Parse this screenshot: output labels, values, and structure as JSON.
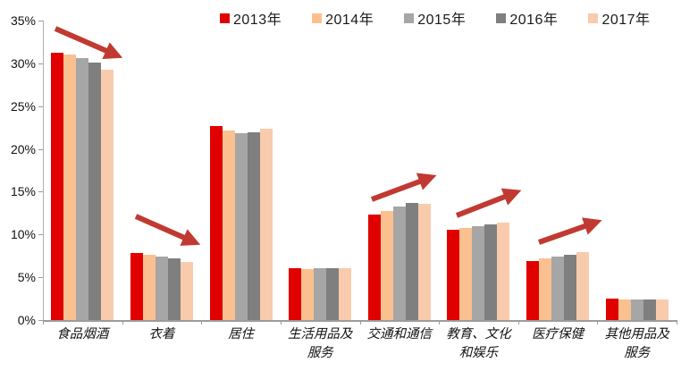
{
  "chart_data": {
    "type": "bar",
    "title": "",
    "categories": [
      "食品烟酒",
      "衣着",
      "居住",
      "生活用品及\n服务",
      "交通和通信",
      "教育、文化\n和娱乐",
      "医疗保健",
      "其他用品及\n服务"
    ],
    "series": [
      {
        "name": "2013年",
        "color": "#e00000",
        "values": [
          31.2,
          7.8,
          22.7,
          6.1,
          12.3,
          10.6,
          6.9,
          2.5
        ]
      },
      {
        "name": "2014年",
        "color": "#fac090",
        "values": [
          31.0,
          7.6,
          22.1,
          6.0,
          12.8,
          10.8,
          7.2,
          2.4
        ]
      },
      {
        "name": "2015年",
        "color": "#a6a6a6",
        "values": [
          30.6,
          7.4,
          21.8,
          6.1,
          13.3,
          11.0,
          7.4,
          2.4
        ]
      },
      {
        "name": "2016年",
        "color": "#7f7f7f",
        "values": [
          30.1,
          7.2,
          21.9,
          6.1,
          13.7,
          11.2,
          7.6,
          2.4
        ]
      },
      {
        "name": "2017年",
        "color": "#f8cbad",
        "values": [
          29.3,
          6.8,
          22.4,
          6.1,
          13.6,
          11.4,
          7.9,
          2.4
        ]
      }
    ],
    "ylim": [
      0,
      35
    ],
    "ytick_step": 5,
    "ytick_labels": [
      "0%",
      "5%",
      "10%",
      "15%",
      "20%",
      "25%",
      "30%",
      "35%"
    ],
    "xlabel": "",
    "ylabel": "",
    "grid": false,
    "legend_position": "top",
    "axis_color": "#9c9c9c",
    "arrow_color": "#c13a32",
    "annotations": [
      {
        "type": "arrow",
        "target": "食品烟酒",
        "trend": "down",
        "from": [
          62,
          32
        ],
        "to": [
          124,
          59
        ]
      },
      {
        "type": "arrow",
        "target": "衣着",
        "trend": "down",
        "from": [
          152,
          242
        ],
        "to": [
          211,
          268
        ]
      },
      {
        "type": "arrow",
        "target": "交通和通信",
        "trend": "up",
        "from": [
          416,
          223
        ],
        "to": [
          475,
          201
        ]
      },
      {
        "type": "arrow",
        "target": "教育、文化和娱乐",
        "trend": "up",
        "from": [
          511,
          241
        ],
        "to": [
          570,
          218
        ]
      },
      {
        "type": "arrow",
        "target": "医疗保健",
        "trend": "up",
        "from": [
          603,
          271
        ],
        "to": [
          660,
          251
        ]
      }
    ]
  }
}
